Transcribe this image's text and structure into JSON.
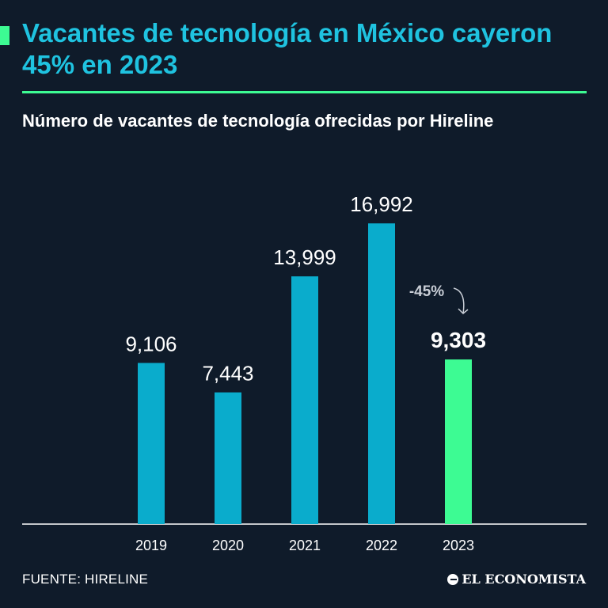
{
  "header": {
    "title": "Vacantes de tecnología en México cayeron 45% en 2023",
    "subtitle": "Número de vacantes de tecnología ofrecidas por Hireline"
  },
  "footer": {
    "source": "FUENTE: HIRELINE",
    "brand": "EL ECONOMISTA"
  },
  "colors": {
    "background": "#0f1b2a",
    "title": "#1fc3e0",
    "bar": "#0aaccc",
    "highlight": "#3dfb93",
    "annotation": "#c9ced6"
  },
  "chart_data": {
    "type": "bar",
    "title": "Número de vacantes de tecnología ofrecidas por Hireline",
    "xlabel": "",
    "ylabel": "",
    "ylim": [
      0,
      17000
    ],
    "grid": false,
    "categories": [
      "2019",
      "2020",
      "2021",
      "2022",
      "2023"
    ],
    "values": [
      9106,
      7443,
      13999,
      16992,
      9303
    ],
    "value_labels": [
      "9,106",
      "7,443",
      "13,999",
      "16,992",
      "9,303"
    ],
    "highlight_index": 4,
    "annotations": [
      {
        "text": "-45%",
        "from": "2022",
        "to": "2023"
      }
    ]
  }
}
